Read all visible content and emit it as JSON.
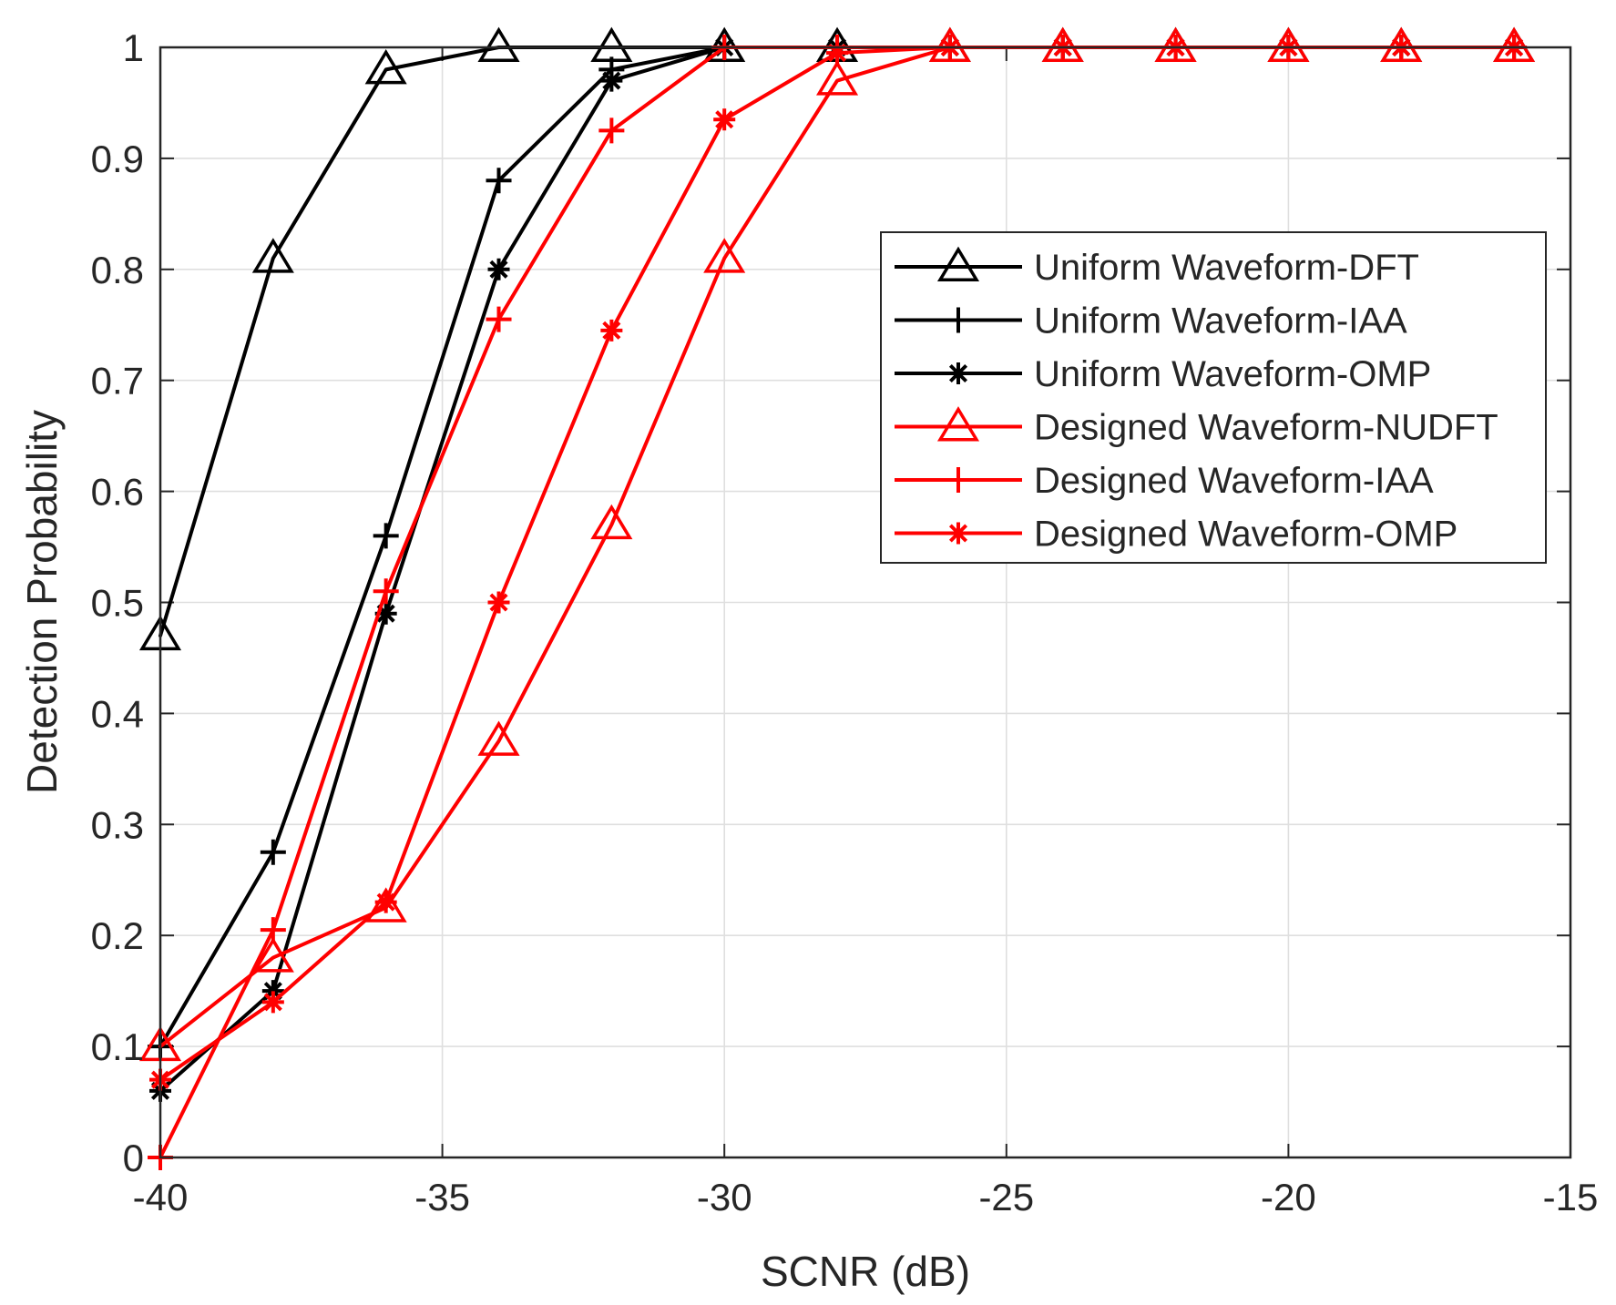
{
  "chart_data": {
    "type": "line",
    "title": "",
    "xlabel": "SCNR (dB)",
    "ylabel": "Detection Probability",
    "xlim": [
      -40,
      -15
    ],
    "ylim": [
      0,
      1
    ],
    "xticks": [
      -40,
      -35,
      -30,
      -25,
      -20,
      -15
    ],
    "yticks": [
      0,
      0.1,
      0.2,
      0.3,
      0.4,
      0.5,
      0.6,
      0.7,
      0.8,
      0.9,
      1
    ],
    "grid": true,
    "legend_position": "right",
    "x": [
      -40,
      -38,
      -36,
      -34,
      -32,
      -30,
      -28,
      -26,
      -24,
      -22,
      -20,
      -18,
      -16
    ],
    "series": [
      {
        "name": "Uniform Waveform-DFT",
        "color": "#000000",
        "marker": "triangle",
        "values": [
          0.47,
          0.81,
          0.98,
          1,
          1,
          1,
          1,
          1,
          1,
          1,
          1,
          1,
          1
        ]
      },
      {
        "name": "Uniform Waveform-IAA",
        "color": "#000000",
        "marker": "plus",
        "values": [
          0.1,
          0.275,
          0.56,
          0.88,
          0.98,
          1,
          1,
          1,
          1,
          1,
          1,
          1,
          1
        ]
      },
      {
        "name": "Uniform Waveform-OMP",
        "color": "#000000",
        "marker": "asterisk",
        "values": [
          0.06,
          0.15,
          0.49,
          0.8,
          0.97,
          1,
          1,
          1,
          1,
          1,
          1,
          1,
          1
        ]
      },
      {
        "name": "Designed Waveform-NUDFT",
        "color": "#ff0000",
        "marker": "triangle",
        "values": [
          0.1,
          0.18,
          0.225,
          0.375,
          0.57,
          0.81,
          0.97,
          1,
          1,
          1,
          1,
          1,
          1
        ]
      },
      {
        "name": "Designed Waveform-IAA",
        "color": "#ff0000",
        "marker": "plus",
        "values": [
          0,
          0.205,
          0.51,
          0.755,
          0.925,
          1,
          1,
          1,
          1,
          1,
          1,
          1,
          1
        ]
      },
      {
        "name": "Designed Waveform-OMP",
        "color": "#ff0000",
        "marker": "asterisk",
        "values": [
          0.07,
          0.14,
          0.23,
          0.5,
          0.745,
          0.935,
          0.995,
          1,
          1,
          1,
          1,
          1,
          1
        ]
      }
    ]
  }
}
